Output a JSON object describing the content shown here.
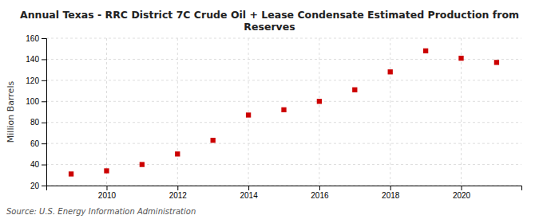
{
  "chart_data": {
    "type": "scatter",
    "title": "Annual Texas - RRC District 7C Crude Oil + Lease Condensate Estimated Production from\nReserves",
    "ylabel": "Million Barrels",
    "source": "Source: U.S. Energy Information Administration",
    "x": [
      2009,
      2010,
      2011,
      2012,
      2013,
      2014,
      2015,
      2016,
      2017,
      2018,
      2019,
      2020,
      2021
    ],
    "values": [
      31,
      34,
      40,
      50,
      63,
      87,
      92,
      100,
      111,
      128,
      148,
      141,
      137
    ],
    "color": "#cc0000",
    "marker": "square",
    "xlim": [
      2008.3,
      2021.7
    ],
    "ylim": [
      20,
      160
    ],
    "xticks": [
      2010,
      2012,
      2014,
      2016,
      2018,
      2020
    ],
    "yticks": [
      20,
      40,
      60,
      80,
      100,
      120,
      140,
      160
    ],
    "grid": true
  }
}
